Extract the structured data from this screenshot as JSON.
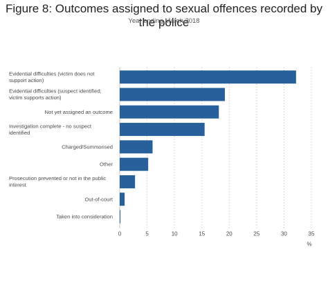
{
  "chart_data": {
    "type": "bar",
    "orientation": "horizontal",
    "title": "Figure 8: Outcomes assigned to sexual offences recorded by the police",
    "subtitle": "Year ending March 2018",
    "xlabel": "%",
    "xlim": [
      0,
      35
    ],
    "xticks": [
      0,
      5,
      10,
      15,
      20,
      25,
      30,
      35
    ],
    "grid": true,
    "bar_color": "#27609b",
    "categories": [
      [
        "Evidential difficulties (victim does not",
        "support action)"
      ],
      [
        "Evidential difficulties (suspect identified;",
        "victim supports action)"
      ],
      [
        "Not yet assigned an outcome"
      ],
      [
        "Investigation complete - no suspect",
        "identified"
      ],
      [
        "Charged/Summonsed"
      ],
      [
        "Other"
      ],
      [
        "Prosecution prevented or not in the public",
        "interest"
      ],
      [
        "Out-of-court"
      ],
      [
        "Taken into consideration"
      ]
    ],
    "values": [
      32.2,
      19.2,
      18.1,
      15.5,
      6.0,
      5.2,
      2.8,
      0.9,
      0.1
    ]
  }
}
